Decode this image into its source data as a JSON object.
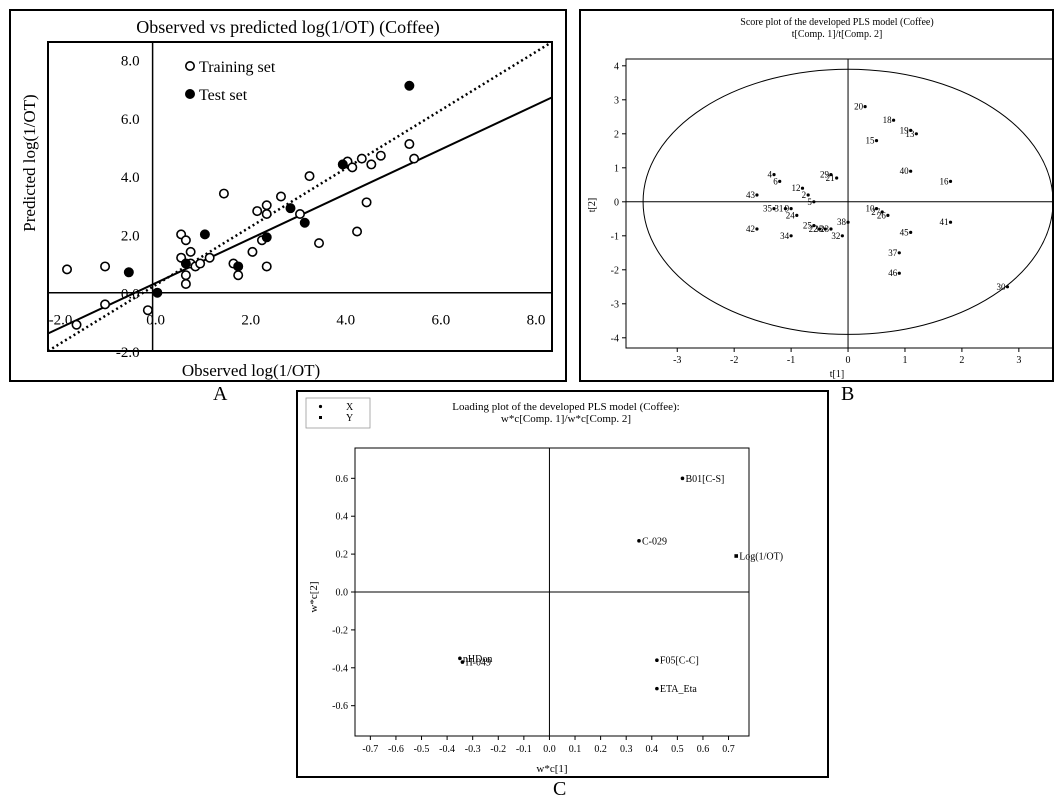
{
  "panels": {
    "a": "A",
    "b": "B",
    "c": "C"
  },
  "chart_data": [
    {
      "id": "A",
      "type": "scatter",
      "title": "Observed vs predicted log(1/OT) (Coffee)",
      "xlabel": "Observed log(1/OT)",
      "ylabel": "Predicted log(1/OT)",
      "xlim": [
        -2.2,
        8.4
      ],
      "ylim": [
        -2.0,
        8.6
      ],
      "xticks": [
        {
          "v": -2.0,
          "t": "-2.0"
        },
        {
          "v": 0.0,
          "t": "0.0"
        },
        {
          "v": 2.0,
          "t": "2.0"
        },
        {
          "v": 4.0,
          "t": "4.0"
        },
        {
          "v": 6.0,
          "t": "6.0"
        },
        {
          "v": 8.0,
          "t": "8.0"
        }
      ],
      "yticks": [
        {
          "v": -2.0,
          "t": "-2.0"
        },
        {
          "v": 0.0,
          "t": "0.0"
        },
        {
          "v": 2.0,
          "t": "2.0"
        },
        {
          "v": 4.0,
          "t": "4.0"
        },
        {
          "v": 6.0,
          "t": "6.0"
        },
        {
          "v": 8.0,
          "t": "8.0"
        }
      ],
      "legend": "top-left",
      "series": [
        {
          "name": "Training set",
          "marker": "open-circle",
          "points": [
            [
              -1.8,
              0.8
            ],
            [
              -1.6,
              -1.1
            ],
            [
              -1.0,
              0.9
            ],
            [
              -1.0,
              -0.4
            ],
            [
              -0.1,
              -0.6
            ],
            [
              0.6,
              2.0
            ],
            [
              0.6,
              1.2
            ],
            [
              0.7,
              1.8
            ],
            [
              0.7,
              0.6
            ],
            [
              0.7,
              0.3
            ],
            [
              0.8,
              1.4
            ],
            [
              0.8,
              1.0
            ],
            [
              0.9,
              0.9
            ],
            [
              1.0,
              1.0
            ],
            [
              1.2,
              1.2
            ],
            [
              1.5,
              3.4
            ],
            [
              1.7,
              1.0
            ],
            [
              1.8,
              0.6
            ],
            [
              2.1,
              1.4
            ],
            [
              2.2,
              2.8
            ],
            [
              2.3,
              1.8
            ],
            [
              2.4,
              2.7
            ],
            [
              2.4,
              3.0
            ],
            [
              2.4,
              0.9
            ],
            [
              2.7,
              3.3
            ],
            [
              3.1,
              2.7
            ],
            [
              3.3,
              4.0
            ],
            [
              3.5,
              1.7
            ],
            [
              4.1,
              4.5
            ],
            [
              4.2,
              4.3
            ],
            [
              4.3,
              2.1
            ],
            [
              4.4,
              4.6
            ],
            [
              4.5,
              3.1
            ],
            [
              4.6,
              4.4
            ],
            [
              4.8,
              4.7
            ],
            [
              5.4,
              5.1
            ],
            [
              5.5,
              4.6
            ]
          ]
        },
        {
          "name": "Test set",
          "marker": "filled-circle",
          "points": [
            [
              -0.5,
              0.7
            ],
            [
              0.1,
              0.0
            ],
            [
              0.7,
              1.0
            ],
            [
              1.1,
              2.0
            ],
            [
              1.8,
              0.9
            ],
            [
              2.4,
              1.9
            ],
            [
              2.9,
              2.9
            ],
            [
              3.2,
              2.4
            ],
            [
              4.0,
              4.4
            ],
            [
              5.4,
              7.1
            ]
          ]
        }
      ],
      "lines": [
        {
          "style": "solid",
          "from": [
            -2.2,
            -1.4
          ],
          "to": [
            8.4,
            6.7
          ]
        },
        {
          "style": "dotted",
          "from": [
            -2.2,
            -2.0
          ],
          "to": [
            8.4,
            8.6
          ]
        }
      ]
    },
    {
      "id": "B",
      "type": "scatter",
      "title": "Score plot of the developed PLS model (Coffee)",
      "subtitle": "t[Comp. 1]/t[Comp. 2]",
      "xlabel": "t[1]",
      "ylabel": "t[2]",
      "xlim": [
        -3.9,
        3.6
      ],
      "ylim": [
        -4.3,
        4.2
      ],
      "xticks": [
        -3,
        -2,
        -1,
        0,
        1,
        2,
        3
      ],
      "yticks": [
        -4,
        -3,
        -2,
        -1,
        0,
        1,
        2,
        3,
        4
      ],
      "ellipse": {
        "cx": 0,
        "cy": 0,
        "rx": 3.6,
        "ry": 3.9
      },
      "points": [
        {
          "label": "20",
          "x": 0.3,
          "y": 2.8
        },
        {
          "label": "18",
          "x": 0.8,
          "y": 2.4
        },
        {
          "label": "19",
          "x": 1.1,
          "y": 2.1
        },
        {
          "label": "13",
          "x": 1.2,
          "y": 2.0
        },
        {
          "label": "15",
          "x": 0.5,
          "y": 1.8
        },
        {
          "label": "40",
          "x": 1.1,
          "y": 0.9
        },
        {
          "label": "16",
          "x": 1.8,
          "y": 0.6
        },
        {
          "label": "4",
          "x": -1.3,
          "y": 0.8
        },
        {
          "label": "6",
          "x": -1.2,
          "y": 0.6
        },
        {
          "label": "29",
          "x": -0.3,
          "y": 0.8
        },
        {
          "label": "21",
          "x": -0.2,
          "y": 0.7
        },
        {
          "label": "12",
          "x": -0.8,
          "y": 0.4
        },
        {
          "label": "2",
          "x": -0.7,
          "y": 0.2
        },
        {
          "label": "43",
          "x": -1.6,
          "y": 0.2
        },
        {
          "label": "5",
          "x": -0.6,
          "y": 0.0
        },
        {
          "label": "10",
          "x": 0.5,
          "y": -0.2
        },
        {
          "label": "27",
          "x": 0.6,
          "y": -0.3
        },
        {
          "label": "26",
          "x": 0.7,
          "y": -0.4
        },
        {
          "label": "41",
          "x": 1.8,
          "y": -0.6
        },
        {
          "label": "35",
          "x": -1.3,
          "y": -0.2
        },
        {
          "label": "31",
          "x": -1.1,
          "y": -0.2
        },
        {
          "label": "9",
          "x": -1.0,
          "y": -0.2
        },
        {
          "label": "24",
          "x": -0.9,
          "y": -0.4
        },
        {
          "label": "38",
          "x": 0.0,
          "y": -0.6
        },
        {
          "label": "25",
          "x": -0.6,
          "y": -0.7
        },
        {
          "label": "22",
          "x": -0.5,
          "y": -0.8
        },
        {
          "label": "33",
          "x": -0.4,
          "y": -0.8
        },
        {
          "label": "23",
          "x": -0.3,
          "y": -0.8
        },
        {
          "label": "32",
          "x": -0.1,
          "y": -1.0
        },
        {
          "label": "42",
          "x": -1.6,
          "y": -0.8
        },
        {
          "label": "34",
          "x": -1.0,
          "y": -1.0
        },
        {
          "label": "45",
          "x": 1.1,
          "y": -0.9
        },
        {
          "label": "37",
          "x": 0.9,
          "y": -1.5
        },
        {
          "label": "46",
          "x": 0.9,
          "y": -2.1
        },
        {
          "label": "30",
          "x": 2.8,
          "y": -2.5
        }
      ]
    },
    {
      "id": "C",
      "type": "scatter",
      "title": "Loading plot of the developed PLS model (Coffee):",
      "subtitle": "w*c[Comp. 1]/w*c[Comp. 2]",
      "xlabel": "w*c[1]",
      "ylabel": "w*c[2]",
      "xlim": [
        -0.76,
        0.78
      ],
      "ylim": [
        -0.76,
        0.76
      ],
      "xticks": [
        {
          "v": -0.7,
          "t": "-0.7"
        },
        {
          "v": -0.6,
          "t": "-0.6"
        },
        {
          "v": -0.5,
          "t": "-0.5"
        },
        {
          "v": -0.4,
          "t": "-0.4"
        },
        {
          "v": -0.3,
          "t": "-0.3"
        },
        {
          "v": -0.2,
          "t": "-0.2"
        },
        {
          "v": -0.1,
          "t": "-0.1"
        },
        {
          "v": 0.0,
          "t": "0.0"
        },
        {
          "v": 0.1,
          "t": "0.1"
        },
        {
          "v": 0.2,
          "t": "0.2"
        },
        {
          "v": 0.3,
          "t": "0.3"
        },
        {
          "v": 0.4,
          "t": "0.4"
        },
        {
          "v": 0.5,
          "t": "0.5"
        },
        {
          "v": 0.6,
          "t": "0.6"
        },
        {
          "v": 0.7,
          "t": "0.7"
        }
      ],
      "yticks": [
        {
          "v": -0.6,
          "t": "-0.6"
        },
        {
          "v": -0.4,
          "t": "-0.4"
        },
        {
          "v": -0.2,
          "t": "-0.2"
        },
        {
          "v": 0.0,
          "t": "0.0"
        },
        {
          "v": 0.2,
          "t": "0.2"
        },
        {
          "v": 0.4,
          "t": "0.4"
        },
        {
          "v": 0.6,
          "t": "0.6"
        }
      ],
      "legend": [
        {
          "name": "X",
          "marker": "dot"
        },
        {
          "name": "Y",
          "marker": "square"
        }
      ],
      "points": [
        {
          "label": "B01[C-S]",
          "x": 0.52,
          "y": 0.6,
          "group": "X"
        },
        {
          "label": "C-029",
          "x": 0.35,
          "y": 0.27,
          "group": "X"
        },
        {
          "label": "Log(1/OT)",
          "x": 0.73,
          "y": 0.19,
          "group": "Y"
        },
        {
          "label": "nHDon",
          "x": -0.35,
          "y": -0.35,
          "group": "X"
        },
        {
          "label": "H-049",
          "x": -0.34,
          "y": -0.37,
          "group": "X"
        },
        {
          "label": "F05[C-C]",
          "x": 0.42,
          "y": -0.36,
          "group": "X"
        },
        {
          "label": "ETA_Eta",
          "x": 0.42,
          "y": -0.51,
          "group": "X"
        }
      ]
    }
  ]
}
